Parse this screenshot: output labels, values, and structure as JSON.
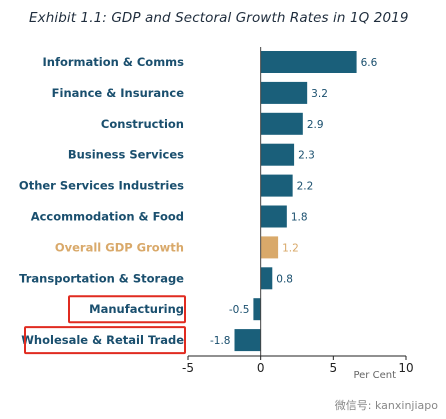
{
  "chart_data": {
    "type": "bar",
    "orientation": "horizontal",
    "title": "Exhibit 1.1:  GDP and Sectoral Growth Rates in 1Q 2019",
    "categories": [
      "Information & Comms",
      "Finance & Insurance",
      "Construction",
      "Business Services",
      "Other Services Industries",
      "Accommodation & Food",
      "Overall GDP Growth",
      "Transportation & Storage",
      "Manufacturing",
      "Wholesale & Retail Trade"
    ],
    "values": [
      6.6,
      3.2,
      2.9,
      2.3,
      2.2,
      1.8,
      1.2,
      0.8,
      -0.5,
      -1.8
    ],
    "value_labels": [
      "6.6",
      "3.2",
      "2.9",
      "2.3",
      "2.2",
      "1.8",
      "1.2",
      "0.8",
      "-0.5",
      "-1.8"
    ],
    "xlim": [
      -5,
      10
    ],
    "xticks": [
      "-5",
      "0",
      "5",
      "10"
    ],
    "xlabel": "Per Cent",
    "highlight_category": "Overall GDP Growth",
    "boxed_categories": [
      "Manufacturing",
      "Wholesale & Retail Trade"
    ],
    "grid": false,
    "colors": {
      "bar": "#1a5f7a",
      "highlight_bar": "#d9a96a",
      "label": "#1a4f6e",
      "highlight_label": "#d9a96a",
      "box": "#e02b20"
    }
  },
  "watermark": "微信号: kanxinjiapo"
}
